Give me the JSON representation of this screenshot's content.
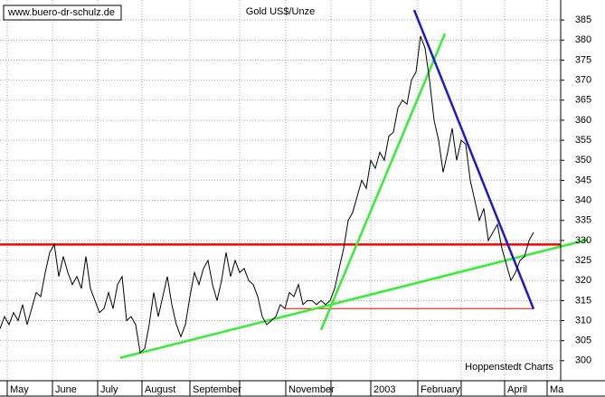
{
  "chart_data": {
    "type": "line",
    "title": "Gold US$/Unze",
    "source": "www.buero-dr-schulz.de",
    "credit": "Hoppenstedt Charts",
    "series": [
      {
        "color": "#000000",
        "values": [
          308,
          311,
          309,
          312,
          310,
          314,
          309,
          313,
          317,
          316,
          322,
          327,
          329,
          321,
          326,
          322,
          319,
          321,
          318,
          326,
          318,
          315,
          312,
          313,
          317,
          313,
          319,
          321,
          310,
          311,
          309,
          302,
          303,
          309,
          317,
          311,
          316,
          321,
          314,
          309,
          306,
          309,
          316,
          322,
          319,
          323,
          325,
          319,
          315,
          320,
          327,
          321,
          325,
          322,
          323,
          320,
          319,
          316,
          311,
          309,
          310,
          311,
          314,
          313,
          317,
          316,
          319,
          314,
          315,
          315,
          314,
          315,
          314,
          315,
          318,
          323,
          328,
          335,
          337,
          341,
          345,
          343,
          350,
          348,
          352,
          350,
          356,
          357,
          363,
          365,
          364,
          370,
          372,
          381,
          378,
          370,
          360,
          355,
          347,
          352,
          358,
          350,
          355,
          354,
          345,
          340,
          335,
          338,
          330,
          332,
          334,
          328,
          324,
          320,
          322,
          325,
          326,
          330,
          332
        ]
      }
    ],
    "trend_lines": [
      {
        "color": "#ff0000",
        "x": [
          0,
          124
        ],
        "y": [
          329,
          329
        ]
      },
      {
        "color": "#ff0000",
        "x": [
          63,
          118
        ],
        "y": [
          313,
          313
        ]
      },
      {
        "color": "#33ee33",
        "x": [
          26.6,
          130
        ],
        "y": [
          300.7,
          330.2
        ]
      },
      {
        "color": "#33ee33",
        "x": [
          71,
          98.4
        ],
        "y": [
          307.7,
          381.6
        ]
      },
      {
        "color": "#1a1acc",
        "x": [
          91.6,
          118
        ],
        "y": [
          387.5,
          312.9
        ]
      }
    ],
    "xlim": [
      0,
      124
    ],
    "xticks": [
      {
        "value": 1.6,
        "label": "May"
      },
      {
        "value": 11.6,
        "label": "June"
      },
      {
        "value": 21.6,
        "label": "July"
      },
      {
        "value": 31.4,
        "label": "August"
      },
      {
        "value": 42,
        "label": "September"
      },
      {
        "value": 53,
        "label": null
      },
      {
        "value": 63.2,
        "label": "November"
      },
      {
        "value": 73.2,
        "label": null
      },
      {
        "value": 82,
        "label": "2003"
      },
      {
        "value": 92.4,
        "label": "February"
      },
      {
        "value": 102,
        "label": null
      },
      {
        "value": 111.6,
        "label": "April"
      },
      {
        "value": 121,
        "label": "Ma"
      }
    ],
    "ylim": [
      295,
      390
    ],
    "yticks": [
      300,
      305,
      310,
      315,
      320,
      325,
      330,
      335,
      340,
      345,
      350,
      355,
      360,
      365,
      370,
      375,
      380,
      385
    ],
    "grid": true
  }
}
